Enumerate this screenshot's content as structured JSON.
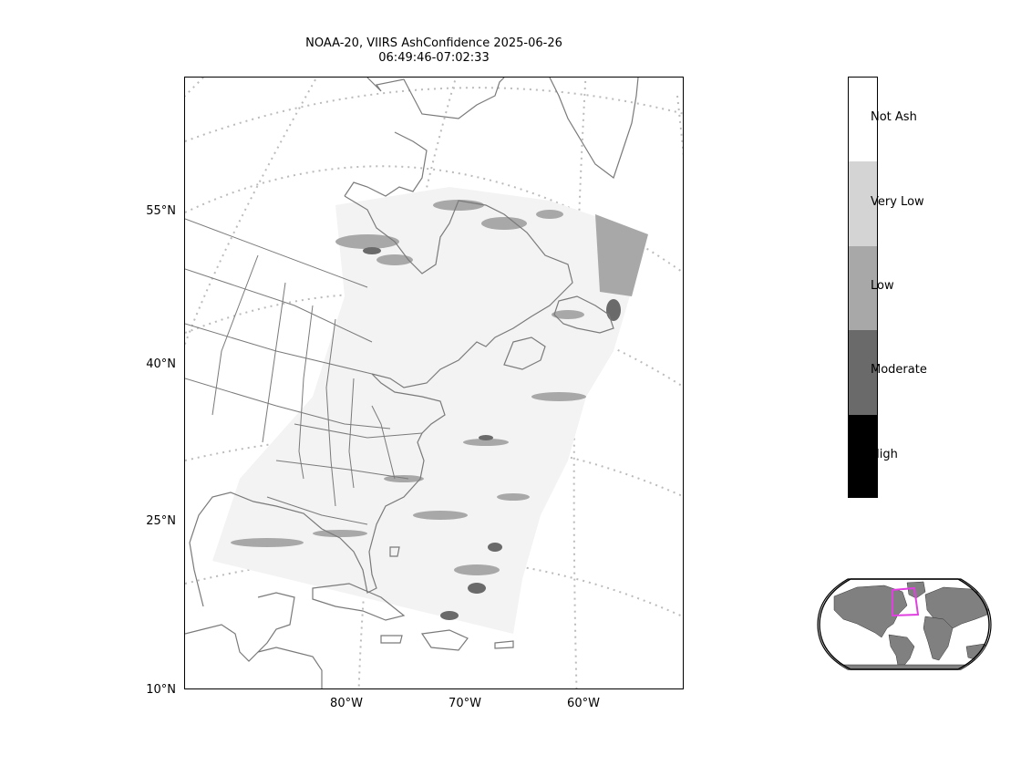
{
  "title": {
    "line1": "NOAA-20, VIIRS AshConfidence 2025-06-26",
    "line2": "06:49:46-07:02:33"
  },
  "map": {
    "lat_labels": [
      "55°N",
      "40°N",
      "25°N",
      "10°N"
    ],
    "lon_labels": [
      "80°W",
      "70°W",
      "60°W"
    ],
    "gridline_color": "#bbbbbb",
    "coastline_color": "#7a7a7a"
  },
  "colorbar": {
    "categories": [
      {
        "label": "Not Ash",
        "color": "#ffffff"
      },
      {
        "label": "Very Low",
        "color": "#d4d4d4"
      },
      {
        "label": "Low",
        "color": "#a8a8a8"
      },
      {
        "label": "Moderate",
        "color": "#6a6a6a"
      },
      {
        "label": "High",
        "color": "#000000"
      }
    ]
  },
  "inset": {
    "land_color": "#808080",
    "box_color": "#e040e0"
  }
}
